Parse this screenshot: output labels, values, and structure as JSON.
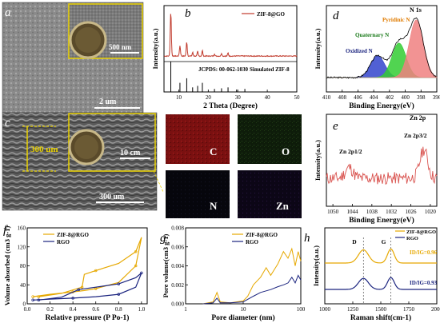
{
  "panel_a": {
    "letter": "a",
    "scale_large": "2 um",
    "scale_inset": "500 nm"
  },
  "panel_c": {
    "letter": "c",
    "thickness": "300 um",
    "scale_large": "300 um",
    "scale_inset": "10 cm"
  },
  "eds_maps": [
    {
      "element": "C",
      "color": "#8a1818"
    },
    {
      "element": "O",
      "color": "#1a3a12"
    },
    {
      "element": "N",
      "color": "#0c0c16"
    },
    {
      "element": "Zn",
      "color": "#1a0c2a"
    }
  ],
  "chart_data": [
    {
      "panel": "b",
      "type": "line",
      "xlabel": "2 Theta (Degree)",
      "ylabel": "Intensity(a.u.)",
      "xlim": [
        5,
        50
      ],
      "xticks": [
        "10",
        "20",
        "30",
        "40",
        "50"
      ],
      "series": [
        {
          "name": "ZIF-8@GO",
          "color": "#c0392b",
          "x": [
            5,
            6,
            7.3,
            8,
            10.4,
            11,
            12.7,
            14,
            16.4,
            18,
            22,
            24.5,
            26.7,
            30,
            35,
            40,
            45,
            50
          ],
          "y": [
            0.05,
            0.05,
            0.95,
            0.1,
            0.25,
            0.08,
            0.3,
            0.1,
            0.1,
            0.12,
            0.06,
            0.08,
            0.07,
            0.06,
            0.05,
            0.05,
            0.05,
            0.05
          ]
        }
      ],
      "reference": {
        "name": "JCPDS: 00-062-1030",
        "label": "Simulated ZIF-8",
        "peaks_x": [
          7.3,
          10.4,
          12.7,
          14.7,
          16.4,
          18.0,
          22.1,
          24.5,
          26.7,
          29.6,
          32.4
        ],
        "peaks_y": [
          1.0,
          0.3,
          0.45,
          0.15,
          0.2,
          0.3,
          0.1,
          0.12,
          0.15,
          0.08,
          0.1
        ]
      }
    },
    {
      "panel": "d",
      "type": "area",
      "title": "N 1s",
      "xlabel": "Binding Energy(eV)",
      "ylabel": "Intensity(a.u.)",
      "xlim": [
        410,
        396
      ],
      "xticks": [
        "410",
        "408",
        "406",
        "404",
        "402",
        "400",
        "398",
        "396"
      ],
      "series": [
        {
          "name": "Pyridinic N",
          "color": "#f08080",
          "center": 398.6,
          "height": 1.0
        },
        {
          "name": "Quaternary N",
          "color": "#33cc33",
          "center": 400.8,
          "height": 0.6
        },
        {
          "name": "Oxidized N",
          "color": "#3344cc",
          "center": 403.5,
          "height": 0.38
        }
      ]
    },
    {
      "panel": "e",
      "type": "line",
      "title": "Zn 2p",
      "xlabel": "Binding Energy(eV)",
      "ylabel": "Intensity(a.u.)",
      "xlim": [
        1052,
        1018
      ],
      "xticks": [
        "1050",
        "1044",
        "1038",
        "1032",
        "1026",
        "1020"
      ],
      "annotations": [
        "Zn 2p1/2",
        "Zn 2p3/2"
      ],
      "series": [
        {
          "name": "Zn 2p",
          "color": "#d9534f",
          "peaks": [
            {
              "x": 1045,
              "h": 0.3
            },
            {
              "x": 1022,
              "h": 0.8
            }
          ]
        }
      ]
    },
    {
      "panel": "f",
      "type": "line",
      "xlabel": "Relative pressure (P Po-1)",
      "ylabel": "Volume absorbed (cm3 g-1)",
      "xlim": [
        0,
        1.05
      ],
      "ylim": [
        0,
        160
      ],
      "xticks": [
        "0.0",
        "0.2",
        "0.4",
        "0.6",
        "0.8",
        "1.0"
      ],
      "yticks": [
        "0",
        "40",
        "80",
        "120",
        "160"
      ],
      "series": [
        {
          "name": "ZIF-8@RGO",
          "color": "#e6a800",
          "x": [
            0.05,
            0.2,
            0.4,
            0.5,
            0.6,
            0.8,
            0.95,
            1.0,
            0.95,
            0.8,
            0.6,
            0.5,
            0.48,
            0.3,
            0.1
          ],
          "y": [
            15,
            20,
            25,
            28,
            32,
            45,
            80,
            140,
            110,
            85,
            70,
            62,
            35,
            22,
            15
          ]
        },
        {
          "name": "RGO",
          "color": "#1a237e",
          "x": [
            0.05,
            0.2,
            0.4,
            0.6,
            0.8,
            0.95,
            1.0,
            0.95,
            0.8,
            0.6,
            0.45,
            0.3,
            0.1
          ],
          "y": [
            8,
            10,
            12,
            15,
            20,
            35,
            65,
            55,
            42,
            35,
            30,
            14,
            8
          ]
        }
      ]
    },
    {
      "panel": "g",
      "type": "line",
      "xlabel": "Pore diameter (nm)",
      "ylabel": "Pore volume(cm3 g-1)",
      "xlim": [
        1,
        100
      ],
      "xscale": "log",
      "ylim": [
        0,
        0.008
      ],
      "xticks": [
        "1",
        "10",
        "100"
      ],
      "yticks": [
        "0.000",
        "0.002",
        "0.004",
        "0.006",
        "0.008"
      ],
      "series": [
        {
          "name": "ZIF-8@RGO",
          "color": "#e6a800",
          "x": [
            2,
            3,
            3.5,
            4,
            6,
            10,
            12,
            15,
            20,
            25,
            30,
            40,
            50,
            60,
            70,
            80,
            90,
            100
          ],
          "y": [
            0,
            0.0002,
            0.0012,
            0.0002,
            0.0001,
            0.0003,
            0.0008,
            0.002,
            0.0028,
            0.0038,
            0.003,
            0.0042,
            0.0055,
            0.0048,
            0.0058,
            0.004,
            0.0055,
            0.0045
          ]
        },
        {
          "name": "RGO",
          "color": "#1a237e",
          "x": [
            2,
            3,
            3.5,
            4,
            6,
            10,
            15,
            20,
            30,
            40,
            50,
            60,
            70,
            80,
            90,
            100
          ],
          "y": [
            0,
            0.0001,
            0.0006,
            0.0001,
            0.0001,
            0.0002,
            0.0008,
            0.0012,
            0.0015,
            0.0018,
            0.002,
            0.0022,
            0.0028,
            0.0022,
            0.003,
            0.0025
          ]
        }
      ]
    },
    {
      "panel": "h",
      "type": "line",
      "xlabel": "Raman shift(cm-1)",
      "ylabel": "Intensity(a.u.)",
      "xlim": [
        1000,
        2000
      ],
      "xticks": [
        "1000",
        "1250",
        "1500",
        "1750",
        "2000"
      ],
      "peak_labels": [
        "D",
        "G"
      ],
      "ratio_labels": [
        "ID/IG=0.96",
        "ID/IG=0.93"
      ],
      "series": [
        {
          "name": "ZIF-8@RGO",
          "color": "#e6a800",
          "offset": 0.55,
          "d_height": 0.3,
          "g_height": 0.32
        },
        {
          "name": "RGO",
          "color": "#1a237e",
          "offset": 0.0,
          "d_height": 0.25,
          "g_height": 0.27
        }
      ]
    }
  ]
}
